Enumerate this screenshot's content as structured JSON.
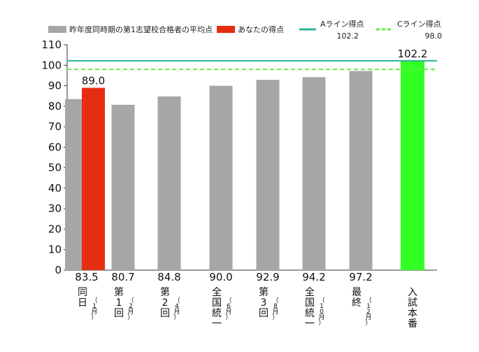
{
  "chart_data": {
    "type": "bar",
    "ylim": [
      0,
      110
    ],
    "yticks": [
      0,
      10,
      20,
      30,
      40,
      50,
      60,
      70,
      80,
      90,
      100,
      110
    ],
    "grid": false,
    "legend_position": "top",
    "categories": [
      {
        "main": [
          "同",
          "日"
        ],
        "sub": "（1月）"
      },
      {
        "main": [
          "第",
          "1",
          "回"
        ],
        "sub": "（2月）"
      },
      {
        "main": [
          "第",
          "2",
          "回"
        ],
        "sub": "（4月）"
      },
      {
        "main": [
          "全",
          "国",
          "統",
          "一"
        ],
        "sub": "（6月）"
      },
      {
        "main": [
          "第",
          "3",
          "回"
        ],
        "sub": "（8月）"
      },
      {
        "main": [
          "全",
          "国",
          "統",
          "一"
        ],
        "sub": "（10月）"
      },
      {
        "main": [
          "最",
          "終"
        ],
        "sub": "（12月）"
      },
      {
        "main": [
          "入",
          "試",
          "本",
          "番"
        ],
        "sub": ""
      }
    ],
    "series": [
      {
        "name": "昨年度同時期の第1志望校合格者の平均点",
        "color": "#a6a6a6",
        "values": [
          83.5,
          80.7,
          84.8,
          90.0,
          92.9,
          94.2,
          97.2,
          null
        ],
        "value_labels": [
          "83.5",
          "80.7",
          "84.8",
          "90.0",
          "92.9",
          "94.2",
          "97.2",
          ""
        ]
      },
      {
        "name": "あなたの得点",
        "color": "#e52d12",
        "values": [
          89.0,
          null,
          null,
          null,
          null,
          null,
          null,
          null
        ],
        "value_labels": [
          "89.0",
          "",
          "",
          "",
          "",
          "",
          "",
          ""
        ]
      }
    ],
    "final_bar": {
      "category_index": 7,
      "value": 102.2,
      "label": "102.2",
      "color": "#33ff22",
      "label_color": "#33dd22"
    },
    "reference_lines": [
      {
        "name": "Aライン得点",
        "value": 102.2,
        "value_label": "102.2",
        "color": "#2ab39a",
        "style": "solid"
      },
      {
        "name": "Cライン得点",
        "value": 98.0,
        "value_label": "98.0",
        "color": "#66ee44",
        "style": "dashed"
      }
    ]
  }
}
